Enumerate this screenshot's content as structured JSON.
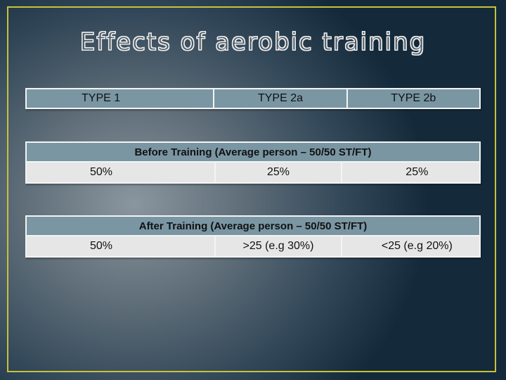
{
  "slide": {
    "title": "Effects of aerobic training",
    "header": [
      "TYPE 1",
      "TYPE 2a",
      "TYPE 2b"
    ],
    "before": {
      "label": "Before Training (Average person – 50/50 ST/FT)",
      "values": [
        "50%",
        "25%",
        "25%"
      ]
    },
    "after": {
      "label": "After Training (Average person – 50/50 ST/FT)",
      "values": [
        "50%",
        ">25 (e.g 30%)",
        "<25 (e.g 20%)"
      ]
    }
  },
  "colors": {
    "frame": "#c8c23a",
    "header_fill": "#7a96a3",
    "data_fill": "#e6e6e6"
  }
}
